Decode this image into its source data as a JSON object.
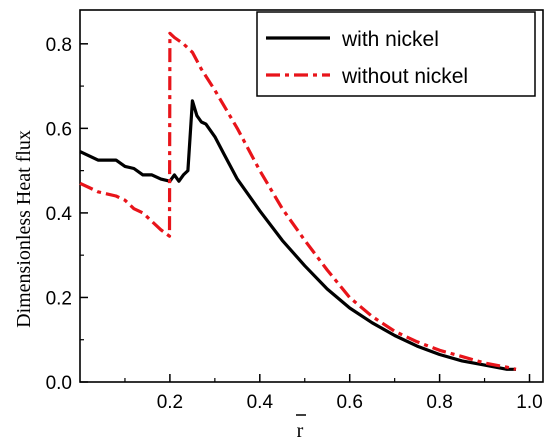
{
  "chart_data": {
    "type": "line",
    "title": "",
    "xlabel": "r",
    "ylabel": "Dimensionless Heat flux",
    "xlim": [
      0.0,
      1.03
    ],
    "ylim": [
      0.0,
      0.88
    ],
    "x_ticks": [
      0.2,
      0.4,
      0.6,
      0.8,
      1.0
    ],
    "x_tick_labels": [
      "0.2",
      "0.4",
      "0.6",
      "0.8",
      "1.0"
    ],
    "y_ticks": [
      0.0,
      0.2,
      0.4,
      0.6,
      0.8
    ],
    "y_tick_labels": [
      "0.0",
      "0.2",
      "0.4",
      "0.6",
      "0.8"
    ],
    "grid": false,
    "legend_position": "top-right",
    "series": [
      {
        "name": "with nickel",
        "color": "#000000",
        "dash": "solid",
        "x": [
          0.0,
          0.02,
          0.04,
          0.06,
          0.08,
          0.1,
          0.12,
          0.14,
          0.16,
          0.18,
          0.2,
          0.21,
          0.22,
          0.23,
          0.24,
          0.25,
          0.26,
          0.27,
          0.28,
          0.3,
          0.32,
          0.35,
          0.4,
          0.45,
          0.5,
          0.55,
          0.6,
          0.65,
          0.7,
          0.75,
          0.8,
          0.85,
          0.9,
          0.95,
          0.97
        ],
        "y": [
          0.545,
          0.535,
          0.525,
          0.525,
          0.525,
          0.51,
          0.505,
          0.49,
          0.49,
          0.48,
          0.475,
          0.49,
          0.475,
          0.49,
          0.5,
          0.665,
          0.63,
          0.615,
          0.61,
          0.58,
          0.54,
          0.48,
          0.405,
          0.335,
          0.275,
          0.22,
          0.175,
          0.14,
          0.11,
          0.085,
          0.065,
          0.05,
          0.04,
          0.03,
          0.03
        ]
      },
      {
        "name": "without nickel",
        "color": "#e8141a",
        "dash": "dashdot",
        "x": [
          0.0,
          0.02,
          0.04,
          0.06,
          0.08,
          0.1,
          0.12,
          0.14,
          0.16,
          0.18,
          0.199,
          0.2,
          0.21,
          0.23,
          0.25,
          0.27,
          0.3,
          0.35,
          0.4,
          0.45,
          0.5,
          0.55,
          0.6,
          0.65,
          0.7,
          0.75,
          0.8,
          0.85,
          0.9,
          0.95,
          0.97
        ],
        "y": [
          0.47,
          0.46,
          0.45,
          0.445,
          0.44,
          0.43,
          0.41,
          0.4,
          0.38,
          0.36,
          0.345,
          0.825,
          0.815,
          0.8,
          0.78,
          0.74,
          0.69,
          0.6,
          0.5,
          0.41,
          0.335,
          0.265,
          0.2,
          0.155,
          0.12,
          0.095,
          0.075,
          0.06,
          0.045,
          0.035,
          0.03
        ]
      }
    ]
  }
}
